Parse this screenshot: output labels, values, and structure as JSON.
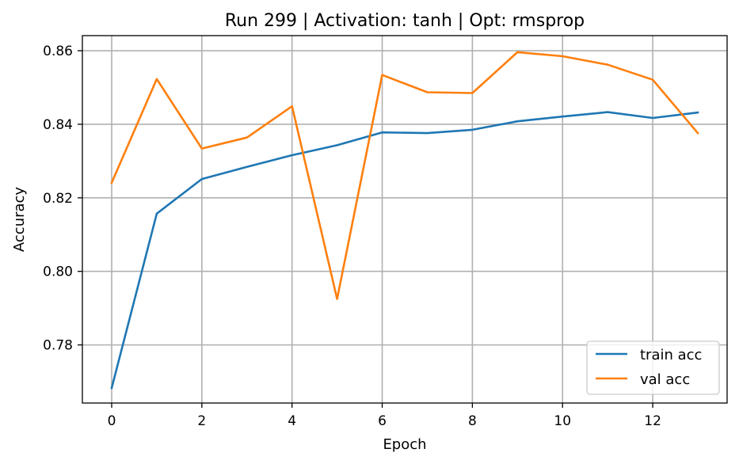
{
  "chart_data": {
    "type": "line",
    "title": "Run 299 | Activation: tanh | Opt: rmsprop",
    "xlabel": "Epoch",
    "ylabel": "Accuracy",
    "x": [
      0,
      1,
      2,
      3,
      4,
      5,
      6,
      7,
      8,
      9,
      10,
      11,
      12,
      13
    ],
    "xlim": [
      -0.65,
      13.65
    ],
    "ylim": [
      0.7642,
      0.8641
    ],
    "xticks": [
      0,
      2,
      4,
      6,
      8,
      10,
      12
    ],
    "xtick_labels": [
      "0",
      "2",
      "4",
      "6",
      "8",
      "10",
      "12"
    ],
    "yticks": [
      0.78,
      0.8,
      0.82,
      0.84,
      0.86
    ],
    "ytick_labels": [
      "0.78",
      "0.80",
      "0.82",
      "0.84",
      "0.86"
    ],
    "grid": true,
    "legend_position": "lower-right",
    "series": [
      {
        "name": "train acc",
        "color": "#1f77b4",
        "values": [
          0.7683,
          0.8157,
          0.8251,
          0.8284,
          0.8316,
          0.8343,
          0.8378,
          0.8376,
          0.8385,
          0.8408,
          0.8421,
          0.8433,
          0.8417,
          0.8432
        ]
      },
      {
        "name": "val acc",
        "color": "#ff7f0e",
        "values": [
          0.8241,
          0.8523,
          0.8334,
          0.8364,
          0.8449,
          0.7925,
          0.8534,
          0.8487,
          0.8485,
          0.8596,
          0.8585,
          0.8562,
          0.8521,
          0.8376
        ]
      }
    ]
  }
}
